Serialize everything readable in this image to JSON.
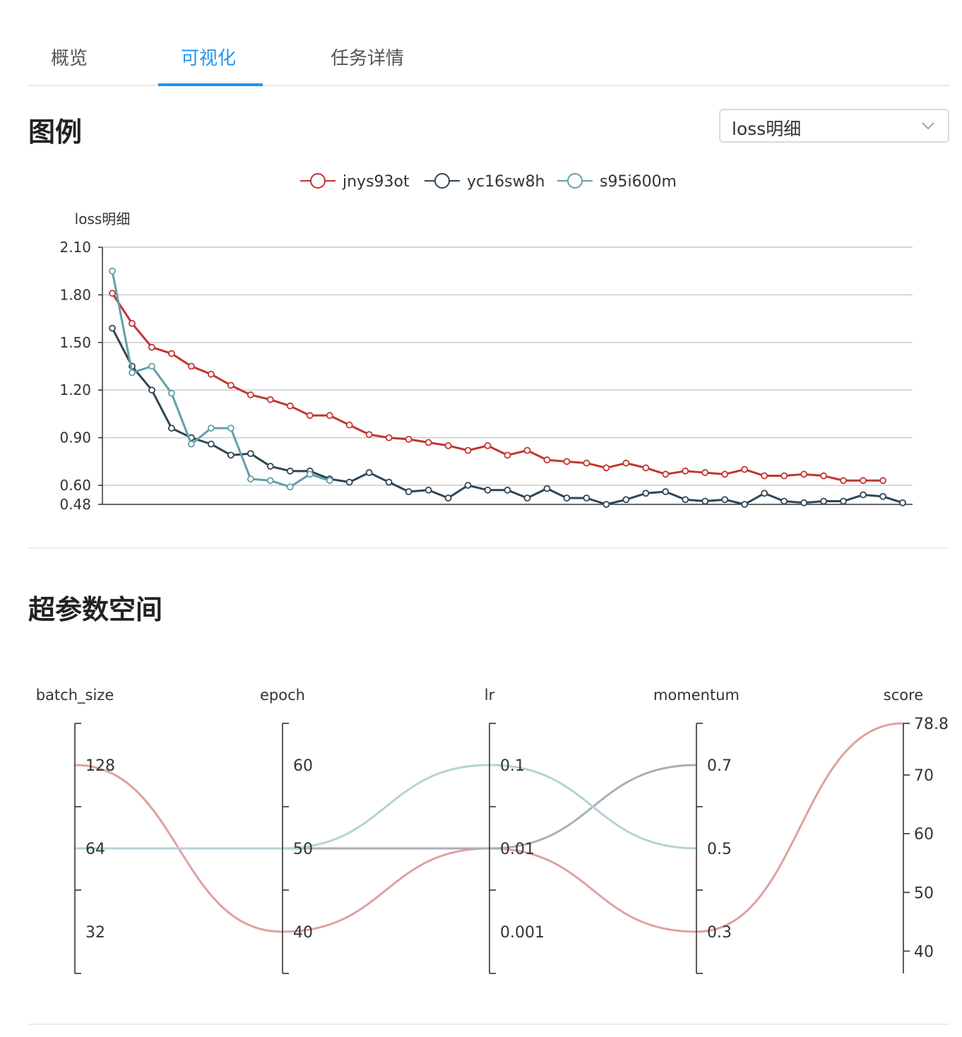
{
  "tabs": [
    {
      "label": "概览"
    },
    {
      "label": "可视化"
    },
    {
      "label": "任务详情"
    }
  ],
  "active_tab": 1,
  "legend_section": {
    "title": "图例",
    "select_value": "loss明细"
  },
  "hyper_section": {
    "title": "超参数空间"
  },
  "colors": {
    "accent": "#2196f3",
    "jnys93ot": "#c23531",
    "yc16sw8h": "#2f4554",
    "s95i600m": "#61a0a8"
  },
  "chart_data": [
    {
      "type": "line",
      "ylabel": "loss明细",
      "ylim": [
        0.48,
        2.1
      ],
      "yticks": [
        "2.10",
        "1.80",
        "1.50",
        "1.20",
        "0.90",
        "0.60",
        "0.48"
      ],
      "grid": true,
      "legend_position": "top-center",
      "series": [
        {
          "name": "jnys93ot",
          "values": [
            1.81,
            1.62,
            1.47,
            1.43,
            1.35,
            1.3,
            1.23,
            1.17,
            1.14,
            1.1,
            1.04,
            1.04,
            0.98,
            0.92,
            0.9,
            0.89,
            0.87,
            0.85,
            0.82,
            0.85,
            0.79,
            0.82,
            0.76,
            0.75,
            0.74,
            0.71,
            0.74,
            0.71,
            0.67,
            0.69,
            0.68,
            0.67,
            0.7,
            0.66,
            0.66,
            0.67,
            0.66,
            0.63,
            0.63,
            0.63
          ]
        },
        {
          "name": "yc16sw8h",
          "values": [
            1.59,
            1.35,
            1.2,
            0.96,
            0.9,
            0.86,
            0.79,
            0.8,
            0.72,
            0.69,
            0.69,
            0.64,
            0.62,
            0.68,
            0.62,
            0.56,
            0.57,
            0.52,
            0.6,
            0.57,
            0.57,
            0.52,
            0.58,
            0.52,
            0.52,
            0.48,
            0.51,
            0.55,
            0.56,
            0.51,
            0.5,
            0.51,
            0.48,
            0.55,
            0.5,
            0.49,
            0.5,
            0.5,
            0.54,
            0.53,
            0.49
          ]
        },
        {
          "name": "s95i600m",
          "values": [
            1.95,
            1.31,
            1.35,
            1.18,
            0.86,
            0.96,
            0.96,
            0.64,
            0.63,
            0.59,
            0.67,
            0.63
          ]
        }
      ]
    },
    {
      "type": "parallel",
      "axes": [
        {
          "name": "batch_size",
          "ticks": [
            "128",
            "64",
            "32"
          ]
        },
        {
          "name": "epoch",
          "ticks": [
            "60",
            "50",
            "40"
          ]
        },
        {
          "name": "lr",
          "ticks": [
            "0.1",
            "0.01",
            "0.001"
          ]
        },
        {
          "name": "momentum",
          "ticks": [
            "0.7",
            "0.5",
            "0.3"
          ]
        },
        {
          "name": "score",
          "ticks": [
            "78.8",
            "70",
            "60",
            "50",
            "40"
          ]
        }
      ],
      "series": [
        {
          "values": [
            128,
            40,
            0.01,
            0.3,
            78.8
          ]
        },
        {
          "values": [
            64,
            50,
            0.01,
            0.7
          ]
        },
        {
          "values": [
            64,
            50,
            0.1,
            0.5
          ]
        }
      ]
    }
  ]
}
